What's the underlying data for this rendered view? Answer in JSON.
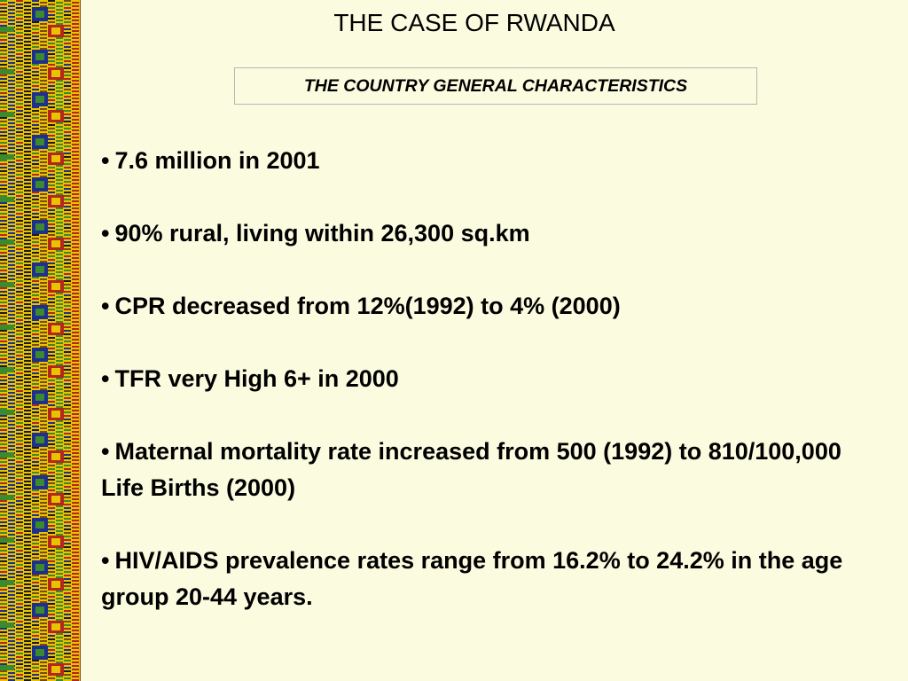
{
  "slide": {
    "title": "THE CASE OF RWANDA",
    "subtitle": "THE COUNTRY GENERAL CHARACTERISTICS",
    "bullet_glyph": "•",
    "bullets": [
      "7.6 million in 2001",
      "90% rural, living within  26,300 sq.km",
      "CPR decreased from 12%(1992) to 4% (2000)",
      "TFR very High 6+ in 2000",
      "Maternal mortality rate increased from 500 (1992) to 810/100,000 Life Births (2000)",
      "HIV/AIDS prevalence rates range from 16.2% to 24.2% in the age group 20-44 years."
    ]
  },
  "decor": {
    "icon": "kente-cloth-border",
    "colors": {
      "background": "#fbfbe0",
      "kente_yellow": "#e8c400",
      "kente_green": "#3c8a2e",
      "kente_red": "#b5261e",
      "kente_blue": "#1f2f8c",
      "kente_brown": "#7a4a10",
      "kente_black": "#1a1a1a"
    }
  }
}
